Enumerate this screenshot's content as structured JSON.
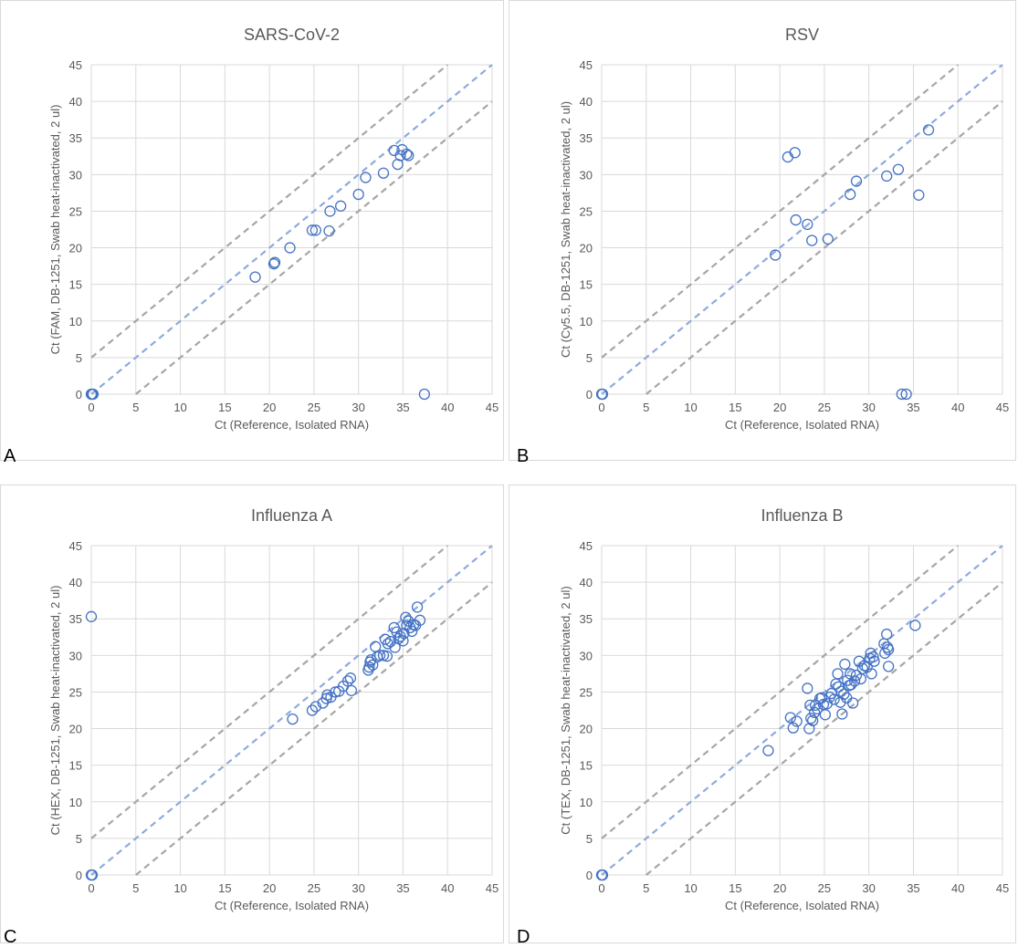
{
  "figure": {
    "panels": [
      {
        "letter": "A",
        "title": "SARS-CoV-2",
        "xlabel": "Ct (Reference, Isolated RNA)",
        "ylabel": "Ct (FAM, DB-1251, Swab heat-inactivated, 2 ul)"
      },
      {
        "letter": "B",
        "title": "RSV",
        "xlabel": "Ct (Reference, Isolated RNA)",
        "ylabel": "Ct (Cy5.5, DB-1251, Swab heat-inactivated, 2 ul)"
      },
      {
        "letter": "C",
        "title": "Influenza A",
        "xlabel": "Ct (Reference, Isolated RNA)",
        "ylabel": "Ct (HEX, DB-1251, Swab heat-inactivated, 2 ul)"
      },
      {
        "letter": "D",
        "title": "Influenza B",
        "xlabel": "Ct (Reference, Isolated RNA)",
        "ylabel": "Ct (TEX, DB-1251, Swab heat-inactivated, 2 ul)"
      }
    ]
  },
  "colors": {
    "marker": "#4472c4",
    "identity": "#8faadc",
    "bounds": "#a6a6a6",
    "grid": "#d9d9d9",
    "text": "#595959"
  },
  "chart_data": [
    {
      "type": "scatter",
      "title": "SARS-CoV-2",
      "xlabel": "Ct (Reference, Isolated RNA)",
      "ylabel": "Ct (FAM, DB-1251, Swab heat-inactivated, 2 ul)",
      "xlim": [
        0,
        45
      ],
      "ylim": [
        0,
        45
      ],
      "xticks": [
        0,
        5,
        10,
        15,
        20,
        25,
        30,
        35,
        40,
        45
      ],
      "yticks": [
        0,
        5,
        10,
        15,
        20,
        25,
        30,
        35,
        40,
        45
      ],
      "grid": true,
      "reference_lines": [
        {
          "slope": 1,
          "intercept": 0,
          "style": "dashed-blue"
        },
        {
          "slope": 1,
          "intercept": 5,
          "style": "dashed-gray"
        },
        {
          "slope": 1,
          "intercept": -5,
          "style": "dashed-gray"
        }
      ],
      "points": [
        [
          0,
          0
        ],
        [
          0.1,
          0
        ],
        [
          0.2,
          0
        ],
        [
          18.4,
          16
        ],
        [
          20.5,
          17.8
        ],
        [
          20.6,
          18
        ],
        [
          22.3,
          20
        ],
        [
          24.8,
          22.4
        ],
        [
          25.2,
          22.4
        ],
        [
          26.7,
          22.3
        ],
        [
          26.8,
          25
        ],
        [
          28,
          25.7
        ],
        [
          30,
          27.3
        ],
        [
          30.8,
          29.6
        ],
        [
          32.8,
          30.2
        ],
        [
          34,
          33.3
        ],
        [
          34.4,
          31.4
        ],
        [
          34.7,
          32.6
        ],
        [
          34.9,
          33.4
        ],
        [
          35.4,
          32.8
        ],
        [
          35.6,
          32.6
        ],
        [
          37.4,
          0
        ]
      ]
    },
    {
      "type": "scatter",
      "title": "RSV",
      "xlabel": "Ct (Reference, Isolated RNA)",
      "ylabel": "Ct (Cy5.5, DB-1251, Swab heat-inactivated, 2 ul)",
      "xlim": [
        0,
        45
      ],
      "ylim": [
        0,
        45
      ],
      "xticks": [
        0,
        5,
        10,
        15,
        20,
        25,
        30,
        35,
        40,
        45
      ],
      "yticks": [
        0,
        5,
        10,
        15,
        20,
        25,
        30,
        35,
        40,
        45
      ],
      "grid": true,
      "reference_lines": [
        {
          "slope": 1,
          "intercept": 0,
          "style": "dashed-blue"
        },
        {
          "slope": 1,
          "intercept": 5,
          "style": "dashed-gray"
        },
        {
          "slope": 1,
          "intercept": -5,
          "style": "dashed-gray"
        }
      ],
      "points": [
        [
          0,
          0
        ],
        [
          0.1,
          0
        ],
        [
          19.5,
          19
        ],
        [
          20.9,
          32.4
        ],
        [
          21.7,
          33
        ],
        [
          21.8,
          23.8
        ],
        [
          23.1,
          23.2
        ],
        [
          23.6,
          21
        ],
        [
          25.4,
          21.2
        ],
        [
          27.9,
          27.3
        ],
        [
          28.6,
          29.1
        ],
        [
          32,
          29.8
        ],
        [
          33.3,
          30.7
        ],
        [
          33.7,
          0
        ],
        [
          34.2,
          0
        ],
        [
          35.6,
          27.2
        ],
        [
          36.7,
          36.1
        ]
      ]
    },
    {
      "type": "scatter",
      "title": "Influenza A",
      "xlabel": "Ct (Reference, Isolated RNA)",
      "ylabel": "Ct (HEX, DB-1251, Swab heat-inactivated, 2 ul)",
      "xlim": [
        0,
        45
      ],
      "ylim": [
        0,
        45
      ],
      "xticks": [
        0,
        5,
        10,
        15,
        20,
        25,
        30,
        35,
        40,
        45
      ],
      "yticks": [
        0,
        5,
        10,
        15,
        20,
        25,
        30,
        35,
        40,
        45
      ],
      "grid": true,
      "reference_lines": [
        {
          "slope": 1,
          "intercept": 0,
          "style": "dashed-blue"
        },
        {
          "slope": 1,
          "intercept": 5,
          "style": "dashed-gray"
        },
        {
          "slope": 1,
          "intercept": -5,
          "style": "dashed-gray"
        }
      ],
      "points": [
        [
          0,
          0
        ],
        [
          0.1,
          0
        ],
        [
          0,
          35.3
        ],
        [
          22.6,
          21.3
        ],
        [
          24.8,
          22.5
        ],
        [
          25.2,
          23
        ],
        [
          26,
          23.5
        ],
        [
          26.4,
          24.1
        ],
        [
          26.5,
          24.6
        ],
        [
          26.9,
          24.3
        ],
        [
          27.4,
          25
        ],
        [
          27.8,
          25.1
        ],
        [
          28.3,
          25.8
        ],
        [
          28.8,
          26.5
        ],
        [
          29.1,
          26.9
        ],
        [
          29.2,
          25.2
        ],
        [
          31.1,
          28
        ],
        [
          31.2,
          28.4
        ],
        [
          31.3,
          29.1
        ],
        [
          31.4,
          29.4
        ],
        [
          31.6,
          28.7
        ],
        [
          31.9,
          31.2
        ],
        [
          32.1,
          29.8
        ],
        [
          32.4,
          30
        ],
        [
          32.8,
          30
        ],
        [
          33,
          32.2
        ],
        [
          33.2,
          29.9
        ],
        [
          33.3,
          31.6
        ],
        [
          33.6,
          31.9
        ],
        [
          34,
          33.8
        ],
        [
          34.1,
          31.1
        ],
        [
          34.3,
          33.2
        ],
        [
          34.5,
          32.3
        ],
        [
          34.7,
          32.6
        ],
        [
          35,
          32
        ],
        [
          35.1,
          33
        ],
        [
          35.3,
          35.2
        ],
        [
          35.4,
          34.1
        ],
        [
          35.6,
          34.7
        ],
        [
          35.8,
          33.8
        ],
        [
          36,
          33.3
        ],
        [
          36.2,
          34.2
        ],
        [
          36.4,
          34.1
        ],
        [
          36.6,
          36.6
        ],
        [
          36.9,
          34.8
        ]
      ]
    },
    {
      "type": "scatter",
      "title": "Influenza B",
      "xlabel": "Ct (Reference, Isolated RNA)",
      "ylabel": "Ct (TEX, DB-1251, Swab heat-inactivated, 2 ul)",
      "xlim": [
        0,
        45
      ],
      "ylim": [
        0,
        45
      ],
      "xticks": [
        0,
        5,
        10,
        15,
        20,
        25,
        30,
        35,
        40,
        45
      ],
      "yticks": [
        0,
        5,
        10,
        15,
        20,
        25,
        30,
        35,
        40,
        45
      ],
      "grid": true,
      "reference_lines": [
        {
          "slope": 1,
          "intercept": 0,
          "style": "dashed-blue"
        },
        {
          "slope": 1,
          "intercept": 5,
          "style": "dashed-gray"
        },
        {
          "slope": 1,
          "intercept": -5,
          "style": "dashed-gray"
        }
      ],
      "points": [
        [
          0,
          0
        ],
        [
          0.1,
          0
        ],
        [
          18.7,
          17
        ],
        [
          21.2,
          21.5
        ],
        [
          21.5,
          20.1
        ],
        [
          21.9,
          21
        ],
        [
          23.1,
          25.5
        ],
        [
          23.3,
          20
        ],
        [
          23.4,
          23.2
        ],
        [
          23.5,
          21.4
        ],
        [
          23.7,
          21.1
        ],
        [
          23.9,
          22.2
        ],
        [
          24,
          23.2
        ],
        [
          24.2,
          22.7
        ],
        [
          24.5,
          24.1
        ],
        [
          24.7,
          24.2
        ],
        [
          24.9,
          23.3
        ],
        [
          25.1,
          21.9
        ],
        [
          25.3,
          23.4
        ],
        [
          25.6,
          24.3
        ],
        [
          25.8,
          24.8
        ],
        [
          26.1,
          24
        ],
        [
          26.3,
          26.1
        ],
        [
          26.5,
          27.5
        ],
        [
          26.6,
          25.7
        ],
        [
          26.8,
          23.6
        ],
        [
          26.9,
          25.1
        ],
        [
          27,
          22
        ],
        [
          27.2,
          24.7
        ],
        [
          27.3,
          28.8
        ],
        [
          27.5,
          24.2
        ],
        [
          27.6,
          26.6
        ],
        [
          27.8,
          25.9
        ],
        [
          27.9,
          27.5
        ],
        [
          28,
          26
        ],
        [
          28.2,
          23.5
        ],
        [
          28.4,
          26.5
        ],
        [
          28.6,
          27.3
        ],
        [
          28.9,
          29.2
        ],
        [
          29.1,
          26.8
        ],
        [
          29.3,
          28.2
        ],
        [
          29.5,
          28.6
        ],
        [
          29.8,
          28.4
        ],
        [
          30.1,
          29.6
        ],
        [
          30.2,
          30.3
        ],
        [
          30.3,
          27.5
        ],
        [
          30.5,
          29.8
        ],
        [
          30.6,
          29.2
        ],
        [
          31.7,
          31.6
        ],
        [
          31.8,
          30.3
        ],
        [
          32,
          32.9
        ],
        [
          32.1,
          31.1
        ],
        [
          32.2,
          30.8
        ],
        [
          32.2,
          28.5
        ],
        [
          35.2,
          34.1
        ]
      ]
    }
  ]
}
